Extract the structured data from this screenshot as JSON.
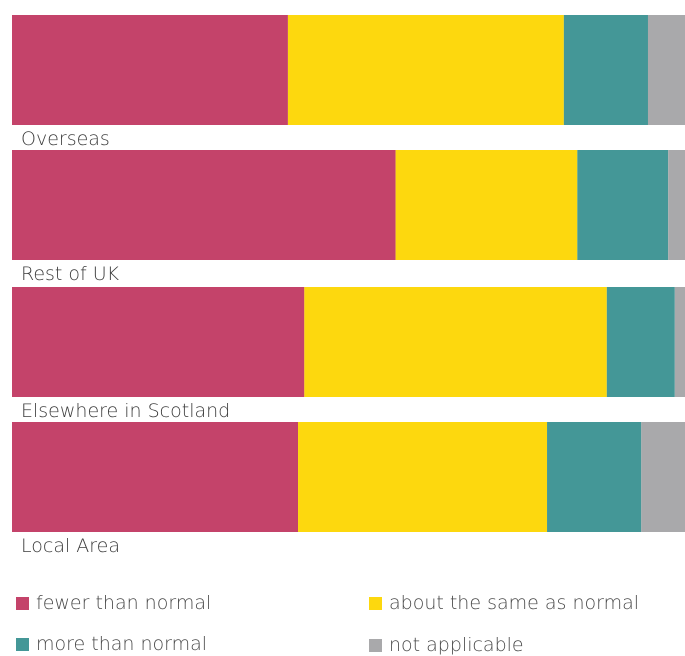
{
  "chart_data": {
    "type": "bar",
    "orientation": "horizontal",
    "stacked": true,
    "normalized_percent": true,
    "categories": [
      "Overseas",
      "Rest of UK",
      "Elsewhere in Scotland",
      "Local Area"
    ],
    "series": [
      {
        "name": "fewer than normal",
        "color": "#c4436a",
        "values": [
          41,
          57,
          43,
          42.5
        ]
      },
      {
        "name": "about the same as normal",
        "color": "#fdd80e",
        "values": [
          41,
          27,
          44.5,
          37
        ]
      },
      {
        "name": "more than normal",
        "color": "#449797",
        "values": [
          12.5,
          13.5,
          10,
          14
        ]
      },
      {
        "name": "not applicable",
        "color": "#a9a9ab",
        "values": [
          5.5,
          2.5,
          1.5,
          6.5
        ]
      }
    ],
    "xlim": [
      0,
      100
    ],
    "grid": false,
    "legend_position": "bottom"
  },
  "legend": {
    "fewer": "fewer than normal",
    "same": "about the same as normal",
    "more": "more than normal",
    "na": "not applicable"
  }
}
